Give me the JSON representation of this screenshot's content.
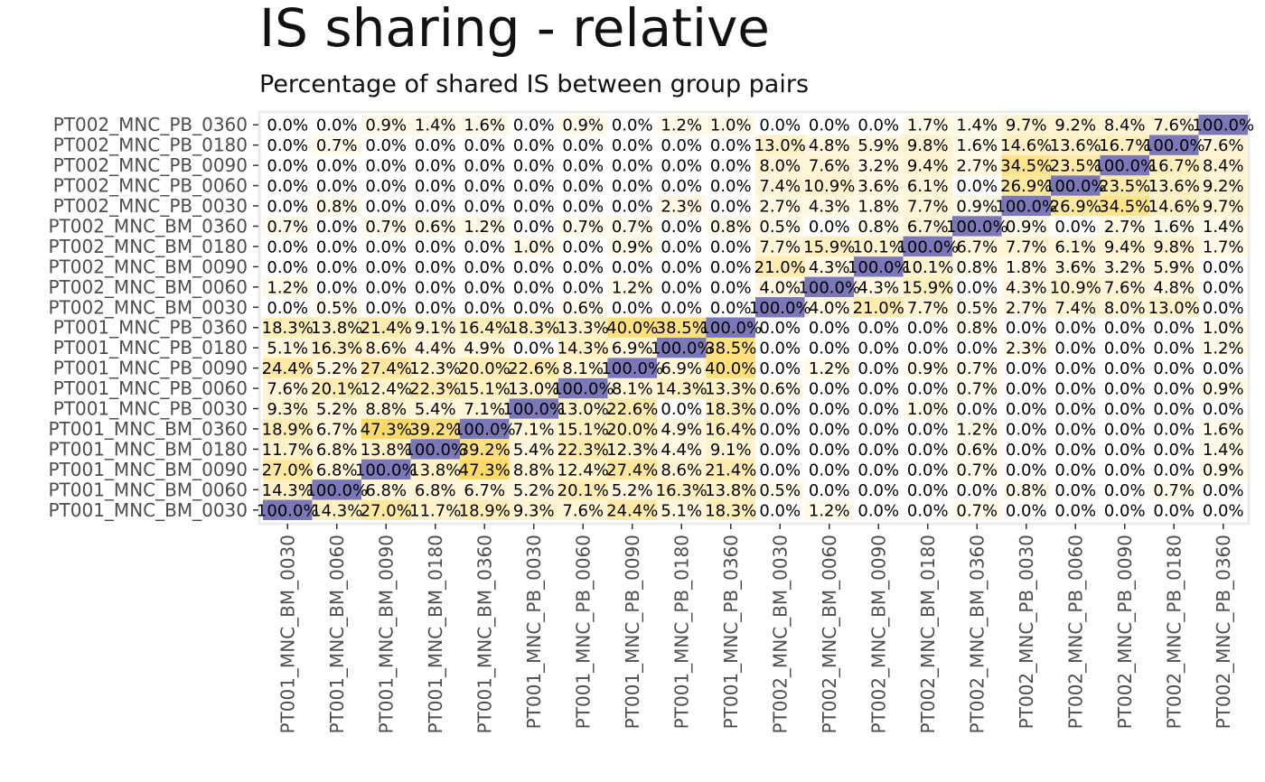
{
  "chart_data": {
    "type": "heatmap",
    "title": "IS sharing - relative",
    "subtitle": "Percentage of shared IS between group pairs",
    "xlabel": "",
    "ylabel": "",
    "x_categories": [
      "PT001_MNC_BM_0030",
      "PT001_MNC_BM_0060",
      "PT001_MNC_BM_0090",
      "PT001_MNC_BM_0180",
      "PT001_MNC_BM_0360",
      "PT001_MNC_PB_0030",
      "PT001_MNC_PB_0060",
      "PT001_MNC_PB_0090",
      "PT001_MNC_PB_0180",
      "PT001_MNC_PB_0360",
      "PT002_MNC_BM_0030",
      "PT002_MNC_BM_0060",
      "PT002_MNC_BM_0090",
      "PT002_MNC_BM_0180",
      "PT002_MNC_BM_0360",
      "PT002_MNC_PB_0030",
      "PT002_MNC_PB_0060",
      "PT002_MNC_PB_0090",
      "PT002_MNC_PB_0180",
      "PT002_MNC_PB_0360"
    ],
    "y_categories": [
      "PT002_MNC_PB_0360",
      "PT002_MNC_PB_0180",
      "PT002_MNC_PB_0090",
      "PT002_MNC_PB_0060",
      "PT002_MNC_PB_0030",
      "PT002_MNC_BM_0360",
      "PT002_MNC_BM_0180",
      "PT002_MNC_BM_0090",
      "PT002_MNC_BM_0060",
      "PT002_MNC_BM_0030",
      "PT001_MNC_PB_0360",
      "PT001_MNC_PB_0180",
      "PT001_MNC_PB_0090",
      "PT001_MNC_PB_0060",
      "PT001_MNC_PB_0030",
      "PT001_MNC_BM_0360",
      "PT001_MNC_BM_0180",
      "PT001_MNC_BM_0090",
      "PT001_MNC_BM_0060",
      "PT001_MNC_BM_0030"
    ],
    "labels": [
      [
        "0.0%",
        "0.0%",
        "0.9%",
        "1.4%",
        "1.6%",
        "0.0%",
        "0.9%",
        "0.0%",
        "1.2%",
        "1.0%",
        "0.0%",
        "0.0%",
        "0.0%",
        "1.7%",
        "1.4%",
        "9.7%",
        "9.2%",
        "8.4%",
        "7.6%",
        "100.0%"
      ],
      [
        "0.0%",
        "0.7%",
        "0.0%",
        "0.0%",
        "0.0%",
        "0.0%",
        "0.0%",
        "0.0%",
        "0.0%",
        "0.0%",
        "13.0%",
        "4.8%",
        "5.9%",
        "9.8%",
        "1.6%",
        "14.6%",
        "13.6%",
        "16.7%",
        "100.0%",
        "7.6%"
      ],
      [
        "0.0%",
        "0.0%",
        "0.0%",
        "0.0%",
        "0.0%",
        "0.0%",
        "0.0%",
        "0.0%",
        "0.0%",
        "0.0%",
        "8.0%",
        "7.6%",
        "3.2%",
        "9.4%",
        "2.7%",
        "34.5%",
        "23.5%",
        "100.0%",
        "16.7%",
        "8.4%"
      ],
      [
        "0.0%",
        "0.0%",
        "0.0%",
        "0.0%",
        "0.0%",
        "0.0%",
        "0.0%",
        "0.0%",
        "0.0%",
        "0.0%",
        "7.4%",
        "10.9%",
        "3.6%",
        "6.1%",
        "0.0%",
        "26.9%",
        "100.0%",
        "23.5%",
        "13.6%",
        "9.2%"
      ],
      [
        "0.0%",
        "0.8%",
        "0.0%",
        "0.0%",
        "0.0%",
        "0.0%",
        "0.0%",
        "0.0%",
        "2.3%",
        "0.0%",
        "2.7%",
        "4.3%",
        "1.8%",
        "7.7%",
        "0.9%",
        "100.0%",
        "26.9%",
        "34.5%",
        "14.6%",
        "9.7%"
      ],
      [
        "0.7%",
        "0.0%",
        "0.7%",
        "0.6%",
        "1.2%",
        "0.0%",
        "0.7%",
        "0.7%",
        "0.0%",
        "0.8%",
        "0.5%",
        "0.0%",
        "0.8%",
        "6.7%",
        "100.0%",
        "0.9%",
        "0.0%",
        "2.7%",
        "1.6%",
        "1.4%"
      ],
      [
        "0.0%",
        "0.0%",
        "0.0%",
        "0.0%",
        "0.0%",
        "1.0%",
        "0.0%",
        "0.9%",
        "0.0%",
        "0.0%",
        "7.7%",
        "15.9%",
        "10.1%",
        "100.0%",
        "6.7%",
        "7.7%",
        "6.1%",
        "9.4%",
        "9.8%",
        "1.7%"
      ],
      [
        "0.0%",
        "0.0%",
        "0.0%",
        "0.0%",
        "0.0%",
        "0.0%",
        "0.0%",
        "0.0%",
        "0.0%",
        "0.0%",
        "21.0%",
        "4.3%",
        "100.0%",
        "10.1%",
        "0.8%",
        "1.8%",
        "3.6%",
        "3.2%",
        "5.9%",
        "0.0%"
      ],
      [
        "1.2%",
        "0.0%",
        "0.0%",
        "0.0%",
        "0.0%",
        "0.0%",
        "0.0%",
        "1.2%",
        "0.0%",
        "0.0%",
        "4.0%",
        "100.0%",
        "4.3%",
        "15.9%",
        "0.0%",
        "4.3%",
        "10.9%",
        "7.6%",
        "4.8%",
        "0.0%"
      ],
      [
        "0.0%",
        "0.5%",
        "0.0%",
        "0.0%",
        "0.0%",
        "0.0%",
        "0.6%",
        "0.0%",
        "0.0%",
        "0.0%",
        "100.0%",
        "4.0%",
        "21.0%",
        "7.7%",
        "0.5%",
        "2.7%",
        "7.4%",
        "8.0%",
        "13.0%",
        "0.0%"
      ],
      [
        "18.3%",
        "13.8%",
        "21.4%",
        "9.1%",
        "16.4%",
        "18.3%",
        "13.3%",
        "40.0%",
        "38.5%",
        "100.0%",
        "0.0%",
        "0.0%",
        "0.0%",
        "0.0%",
        "0.8%",
        "0.0%",
        "0.0%",
        "0.0%",
        "0.0%",
        "1.0%"
      ],
      [
        "5.1%",
        "16.3%",
        "8.6%",
        "4.4%",
        "4.9%",
        "0.0%",
        "14.3%",
        "6.9%",
        "100.0%",
        "38.5%",
        "0.0%",
        "0.0%",
        "0.0%",
        "0.0%",
        "0.0%",
        "2.3%",
        "0.0%",
        "0.0%",
        "0.0%",
        "1.2%"
      ],
      [
        "24.4%",
        "5.2%",
        "27.4%",
        "12.3%",
        "20.0%",
        "22.6%",
        "8.1%",
        "100.0%",
        "6.9%",
        "40.0%",
        "0.0%",
        "1.2%",
        "0.0%",
        "0.9%",
        "0.7%",
        "0.0%",
        "0.0%",
        "0.0%",
        "0.0%",
        "0.0%"
      ],
      [
        "7.6%",
        "20.1%",
        "12.4%",
        "22.3%",
        "15.1%",
        "13.0%",
        "100.0%",
        "8.1%",
        "14.3%",
        "13.3%",
        "0.6%",
        "0.0%",
        "0.0%",
        "0.0%",
        "0.7%",
        "0.0%",
        "0.0%",
        "0.0%",
        "0.0%",
        "0.9%"
      ],
      [
        "9.3%",
        "5.2%",
        "8.8%",
        "5.4%",
        "7.1%",
        "100.0%",
        "13.0%",
        "22.6%",
        "0.0%",
        "18.3%",
        "0.0%",
        "0.0%",
        "0.0%",
        "1.0%",
        "0.0%",
        "0.0%",
        "0.0%",
        "0.0%",
        "0.0%",
        "0.0%"
      ],
      [
        "18.9%",
        "6.7%",
        "47.3%",
        "39.2%",
        "100.0%",
        "7.1%",
        "15.1%",
        "20.0%",
        "4.9%",
        "16.4%",
        "0.0%",
        "0.0%",
        "0.0%",
        "0.0%",
        "1.2%",
        "0.0%",
        "0.0%",
        "0.0%",
        "0.0%",
        "1.6%"
      ],
      [
        "11.7%",
        "6.8%",
        "13.8%",
        "100.0%",
        "39.2%",
        "5.4%",
        "22.3%",
        "12.3%",
        "4.4%",
        "9.1%",
        "0.0%",
        "0.0%",
        "0.0%",
        "0.0%",
        "0.6%",
        "0.0%",
        "0.0%",
        "0.0%",
        "0.0%",
        "1.4%"
      ],
      [
        "27.0%",
        "6.8%",
        "100.0%",
        "13.8%",
        "47.3%",
        "8.8%",
        "12.4%",
        "27.4%",
        "8.6%",
        "21.4%",
        "0.0%",
        "0.0%",
        "0.0%",
        "0.0%",
        "0.7%",
        "0.0%",
        "0.0%",
        "0.0%",
        "0.0%",
        "0.9%"
      ],
      [
        "14.3%",
        "100.0%",
        "6.8%",
        "6.8%",
        "6.7%",
        "5.2%",
        "20.1%",
        "5.2%",
        "16.3%",
        "13.8%",
        "0.5%",
        "0.0%",
        "0.0%",
        "0.0%",
        "0.0%",
        "0.8%",
        "0.0%",
        "0.0%",
        "0.7%",
        "0.0%"
      ],
      [
        "100.0%",
        "14.3%",
        "27.0%",
        "11.7%",
        "18.9%",
        "9.3%",
        "7.6%",
        "24.4%",
        "5.1%",
        "18.3%",
        "0.0%",
        "1.2%",
        "0.0%",
        "0.0%",
        "0.7%",
        "0.0%",
        "0.0%",
        "0.0%",
        "0.0%",
        "0.0%"
      ]
    ],
    "color_scale": {
      "low": "#fffaeb",
      "high": "#fcd860",
      "diagonal": "#7b78b9",
      "max_value": 50
    },
    "legend": "none",
    "grid": false
  }
}
